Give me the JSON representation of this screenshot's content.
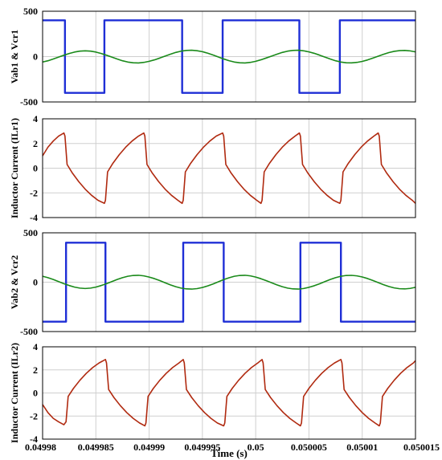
{
  "chart_data": [
    {
      "type": "line",
      "ylabel": "Vab1 & Vcr1",
      "ylim": [
        -500,
        500
      ],
      "yticks": [
        "500",
        "0",
        "-500"
      ],
      "grid": true,
      "series": [
        {
          "color": "#1f2fd6",
          "x": [
            0.04998,
            0.0499821,
            0.0499821,
            0.0499858,
            0.0499858,
            0.0499931,
            0.0499931,
            0.0499969,
            0.0499969,
            0.0500041,
            0.0500041,
            0.0500079,
            0.0500079,
            0.050015
          ],
          "y": [
            400,
            400,
            -400,
            -400,
            400,
            400,
            -400,
            -400,
            400,
            400,
            -400,
            -400,
            400,
            400
          ]
        },
        {
          "color": "#1a8a1a",
          "x": [
            0.04998,
            0.0499805,
            0.049981,
            0.0499815,
            0.049982,
            0.0499825,
            0.049983,
            0.0499835,
            0.049984,
            0.0499845,
            0.049985,
            0.0499855,
            0.049986,
            0.0499865,
            0.049987,
            0.0499875,
            0.049988,
            0.0499885,
            0.049989,
            0.0499895,
            0.04999,
            0.0499905,
            0.049991,
            0.0499915,
            0.049992,
            0.0499925,
            0.049993,
            0.0499935,
            0.049994,
            0.0499945,
            0.049995,
            0.0499955,
            0.049996,
            0.0499965,
            0.049997,
            0.0499975,
            0.049998,
            0.0499985,
            0.049999,
            0.0499995,
            0.05,
            0.0500005,
            0.050001,
            0.0500015,
            0.050002,
            0.0500025,
            0.050003,
            0.0500035,
            0.050004,
            0.0500045,
            0.050005,
            0.0500055,
            0.050006,
            0.0500065,
            0.050007,
            0.0500075,
            0.050008,
            0.0500085,
            0.050009,
            0.0500095,
            0.05001,
            0.0500105,
            0.050011,
            0.0500115,
            0.050012,
            0.0500125,
            0.050013,
            0.0500135,
            0.050014,
            0.0500145,
            0.050015
          ],
          "y": [
            -60,
            -46,
            -27,
            -6,
            15,
            34,
            50,
            60,
            64,
            60,
            50,
            34,
            15,
            -6,
            -27,
            -46,
            -60,
            -68,
            -70,
            -64,
            -52,
            -36,
            -16,
            6,
            27,
            46,
            60,
            68,
            70,
            65,
            54,
            38,
            18,
            -4,
            -26,
            -45,
            -60,
            -68,
            -70,
            -64,
            -52,
            -35,
            -15,
            6,
            27,
            46,
            60,
            68,
            70,
            64,
            52,
            36,
            16,
            -6,
            -27,
            -46,
            -60,
            -68,
            -69,
            -64,
            -53,
            -37,
            -17,
            4,
            25,
            44,
            58,
            66,
            68,
            63,
            52
          ]
        }
      ]
    },
    {
      "type": "line",
      "ylabel": "Inductor Current (ILr1)",
      "ylim": [
        -4,
        4
      ],
      "yticks": [
        "4",
        "2",
        "0",
        "-2",
        "-4"
      ],
      "grid": true,
      "series": [
        {
          "color": "#b02a10",
          "x": [
            0.04998,
            0.0499805,
            0.049981,
            0.0499815,
            0.049982,
            0.0499821,
            0.0499823,
            0.0499828,
            0.0499834,
            0.049984,
            0.0499846,
            0.0499852,
            0.0499858,
            0.0499859,
            0.0499861,
            0.0499866,
            0.0499872,
            0.0499878,
            0.0499884,
            0.049989,
            0.0499895,
            0.0499896,
            0.0499898,
            0.0499903,
            0.0499909,
            0.0499915,
            0.0499921,
            0.0499927,
            0.0499931,
            0.0499932,
            0.0499934,
            0.0499939,
            0.0499945,
            0.0499951,
            0.0499957,
            0.0499963,
            0.0499969,
            0.049997,
            0.0499972,
            0.0499977,
            0.0499983,
            0.0499989,
            0.0499995,
            0.0500001,
            0.0500005,
            0.0500006,
            0.0500008,
            0.0500013,
            0.0500019,
            0.0500025,
            0.0500031,
            0.0500037,
            0.0500041,
            0.0500042,
            0.0500044,
            0.0500049,
            0.0500055,
            0.0500061,
            0.0500067,
            0.0500073,
            0.0500079,
            0.050008,
            0.0500082,
            0.0500087,
            0.0500093,
            0.0500099,
            0.0500105,
            0.0500111,
            0.0500115,
            0.0500116,
            0.0500118,
            0.0500123,
            0.0500129,
            0.0500135,
            0.0500141,
            0.0500147,
            0.050015
          ],
          "y": [
            1.0,
            1.7,
            2.2,
            2.6,
            2.85,
            2.6,
            0.3,
            -0.4,
            -1.1,
            -1.7,
            -2.2,
            -2.6,
            -2.85,
            -2.6,
            -0.3,
            0.4,
            1.1,
            1.7,
            2.2,
            2.6,
            2.85,
            2.6,
            0.3,
            -0.4,
            -1.1,
            -1.7,
            -2.2,
            -2.6,
            -2.85,
            -2.6,
            -0.3,
            0.4,
            1.1,
            1.7,
            2.2,
            2.6,
            2.85,
            2.6,
            0.3,
            -0.4,
            -1.1,
            -1.7,
            -2.2,
            -2.6,
            -2.85,
            -2.6,
            -0.3,
            0.4,
            1.1,
            1.7,
            2.2,
            2.6,
            2.85,
            2.6,
            0.3,
            -0.4,
            -1.1,
            -1.7,
            -2.2,
            -2.6,
            -2.85,
            -2.6,
            -0.3,
            0.4,
            1.1,
            1.7,
            2.2,
            2.6,
            2.85,
            2.6,
            0.3,
            -0.4,
            -1.1,
            -1.7,
            -2.2,
            -2.6,
            -2.85
          ]
        }
      ]
    },
    {
      "type": "line",
      "ylabel": "Vab2 & Vcr2",
      "ylim": [
        -500,
        500
      ],
      "yticks": [
        "500",
        "0",
        "-500"
      ],
      "grid": true,
      "series": [
        {
          "color": "#1f2fd6",
          "x": [
            0.04998,
            0.0499822,
            0.0499822,
            0.0499859,
            0.0499859,
            0.0499932,
            0.0499932,
            0.049997,
            0.049997,
            0.0500042,
            0.0500042,
            0.050008,
            0.050008,
            0.050015
          ],
          "y": [
            -400,
            -400,
            400,
            400,
            -400,
            -400,
            400,
            400,
            -400,
            -400,
            400,
            400,
            -400,
            -400
          ]
        },
        {
          "color": "#1a8a1a",
          "x": [
            0.04998,
            0.0499805,
            0.049981,
            0.0499815,
            0.049982,
            0.0499825,
            0.049983,
            0.0499835,
            0.049984,
            0.0499845,
            0.049985,
            0.0499855,
            0.049986,
            0.0499865,
            0.049987,
            0.0499875,
            0.049988,
            0.0499885,
            0.049989,
            0.0499895,
            0.04999,
            0.0499905,
            0.049991,
            0.0499915,
            0.049992,
            0.0499925,
            0.049993,
            0.0499935,
            0.049994,
            0.0499945,
            0.049995,
            0.0499955,
            0.049996,
            0.0499965,
            0.049997,
            0.0499975,
            0.049998,
            0.0499985,
            0.049999,
            0.0499995,
            0.05,
            0.0500005,
            0.050001,
            0.0500015,
            0.050002,
            0.0500025,
            0.050003,
            0.0500035,
            0.050004,
            0.0500045,
            0.050005,
            0.0500055,
            0.050006,
            0.0500065,
            0.050007,
            0.0500075,
            0.050008,
            0.0500085,
            0.050009,
            0.0500095,
            0.05001,
            0.0500105,
            0.050011,
            0.0500115,
            0.050012,
            0.0500125,
            0.050013,
            0.0500135,
            0.050014,
            0.0500145,
            0.050015
          ],
          "y": [
            60,
            46,
            27,
            6,
            -15,
            -34,
            -50,
            -60,
            -64,
            -60,
            -50,
            -34,
            -15,
            6,
            27,
            46,
            60,
            68,
            70,
            64,
            52,
            36,
            16,
            -6,
            -27,
            -46,
            -60,
            -68,
            -70,
            -65,
            -54,
            -38,
            -18,
            4,
            26,
            45,
            60,
            68,
            70,
            64,
            52,
            35,
            15,
            -6,
            -27,
            -46,
            -60,
            -68,
            -70,
            -64,
            -52,
            -36,
            -16,
            6,
            27,
            46,
            60,
            68,
            69,
            64,
            53,
            37,
            17,
            -4,
            -25,
            -44,
            -58,
            -66,
            -68,
            -63,
            -52
          ]
        }
      ]
    },
    {
      "type": "line",
      "ylabel": "Inductor Current (ILr2)",
      "ylim": [
        -4,
        4
      ],
      "yticks": [
        "4",
        "2",
        "0",
        "-2",
        "-4"
      ],
      "xlabel": "Time (s)",
      "xticks": [
        "0.04998",
        "0.049985",
        "0.04999",
        "0.049995",
        "0.05",
        "0.050005",
        "0.05001",
        "0.050015"
      ],
      "grid": true,
      "series": [
        {
          "color": "#b02a10",
          "x": [
            0.04998,
            0.0499805,
            0.049981,
            0.0499815,
            0.049982,
            0.0499822,
            0.0499824,
            0.0499829,
            0.0499835,
            0.0499841,
            0.0499847,
            0.0499853,
            0.0499859,
            0.049986,
            0.0499862,
            0.0499867,
            0.0499873,
            0.0499879,
            0.0499885,
            0.0499891,
            0.0499896,
            0.0499897,
            0.0499899,
            0.0499904,
            0.049991,
            0.0499916,
            0.0499922,
            0.0499928,
            0.0499932,
            0.0499933,
            0.0499935,
            0.049994,
            0.0499946,
            0.0499952,
            0.0499958,
            0.0499964,
            0.049997,
            0.0499971,
            0.0499973,
            0.0499978,
            0.0499984,
            0.049999,
            0.0499996,
            0.0500002,
            0.0500006,
            0.0500007,
            0.0500009,
            0.0500014,
            0.050002,
            0.0500026,
            0.0500032,
            0.0500038,
            0.0500042,
            0.0500043,
            0.0500045,
            0.050005,
            0.0500056,
            0.0500062,
            0.0500068,
            0.0500074,
            0.050008,
            0.0500081,
            0.0500083,
            0.0500088,
            0.0500094,
            0.05001,
            0.0500106,
            0.0500112,
            0.0500116,
            0.0500117,
            0.0500119,
            0.0500124,
            0.050013,
            0.0500136,
            0.0500142,
            0.0500148,
            0.050015
          ],
          "y": [
            -1.0,
            -1.7,
            -2.2,
            -2.5,
            -2.75,
            -2.5,
            -0.3,
            0.4,
            1.1,
            1.7,
            2.2,
            2.6,
            2.9,
            2.6,
            0.3,
            -0.4,
            -1.1,
            -1.7,
            -2.2,
            -2.6,
            -2.85,
            -2.6,
            -0.3,
            0.4,
            1.1,
            1.7,
            2.2,
            2.6,
            2.9,
            2.6,
            0.3,
            -0.4,
            -1.1,
            -1.7,
            -2.2,
            -2.6,
            -2.85,
            -2.6,
            -0.3,
            0.4,
            1.1,
            1.7,
            2.2,
            2.6,
            2.9,
            2.6,
            0.3,
            -0.4,
            -1.1,
            -1.7,
            -2.2,
            -2.6,
            -2.85,
            -2.6,
            -0.3,
            0.4,
            1.1,
            1.7,
            2.2,
            2.6,
            2.9,
            2.6,
            0.3,
            -0.4,
            -1.1,
            -1.7,
            -2.2,
            -2.6,
            -2.85,
            -2.6,
            -0.3,
            0.4,
            1.1,
            1.7,
            2.2,
            2.6,
            2.8
          ]
        }
      ]
    }
  ],
  "x_axis": {
    "xlim": [
      0.04998,
      0.050015
    ],
    "xticks": [
      "0.04998",
      "0.049985",
      "0.04999",
      "0.049995",
      "0.05",
      "0.050005",
      "0.05001",
      "0.050015"
    ],
    "xlabel": "Time (s)"
  }
}
